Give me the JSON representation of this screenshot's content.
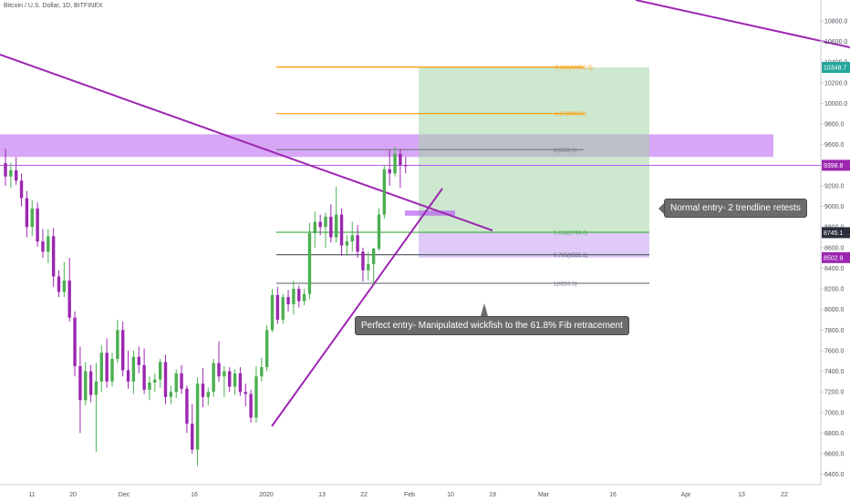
{
  "header": {
    "title": "Bitcoin / U.S. Dollar, 1D, BITFINEX"
  },
  "colors": {
    "bull": "#26a69a",
    "bull_fill": "#4caf50",
    "bear": "#9c27b0",
    "trendline": "#9c27b0",
    "zone": "#b65cf0",
    "profit": "#a5d6a7",
    "loss": "#d1b3f5",
    "fib_orange": "#ff9800",
    "fib_green": "#4caf50",
    "fib_gray": "#787b86",
    "fib_dark": "#5d606b"
  },
  "chart_data": {
    "type": "candlestick",
    "title": "Bitcoin / U.S. Dollar, 1D, BITFINEX",
    "ylim": [
      6300,
      10950
    ],
    "y_ticks": [
      6400,
      6600,
      6800,
      7000,
      7200,
      7400,
      7600,
      7800,
      8000,
      8200,
      8400,
      8600,
      8800,
      9000,
      9200,
      9400,
      9600,
      9800,
      10000,
      10200,
      10400,
      10600,
      10800
    ],
    "x_ticks": [
      "11",
      "20",
      "Dec",
      "16",
      "2020",
      "13",
      "22",
      "Feb",
      "10",
      "19",
      "Mar",
      "16",
      "Apr",
      "13",
      "22"
    ],
    "price_labels": [
      {
        "text": "10348.7",
        "value": 10348.7,
        "color": "#26a69a"
      },
      {
        "text": "9398.8",
        "value": 9398.8,
        "color": "#9c27b0"
      },
      {
        "text": "8745.1",
        "value": 8745.1,
        "color": "#2a2e39"
      },
      {
        "text": "8502.9",
        "value": 8502.9,
        "color": "#9c27b0"
      }
    ],
    "fib_levels": [
      {
        "label": "-0.618(10352.3)",
        "value": 10352.3,
        "color": "#ff9800"
      },
      {
        "label": "-0.27(9900.8)",
        "value": 9900.8,
        "color": "#ff9800"
      },
      {
        "label": "0(9550.6)",
        "value": 9550.6,
        "color": "#787b86"
      },
      {
        "label": "0.618(8749.0)",
        "value": 8749.0,
        "color": "#4caf50"
      },
      {
        "label": "0.786(8531.1)",
        "value": 8531.1,
        "color": "#5d606b"
      },
      {
        "label": "1(8253.5)",
        "value": 8253.5,
        "color": "#787b86"
      }
    ],
    "annotations": [
      "Normal entry- 2 trendline retests",
      "Perfect entry- Manipulated wickfish to the 61.8% Fib retracement"
    ],
    "candles": [
      {
        "o": 9420,
        "h": 9560,
        "l": 9200,
        "c": 9290
      },
      {
        "o": 9290,
        "h": 9420,
        "l": 9180,
        "c": 9350
      },
      {
        "o": 9350,
        "h": 9480,
        "l": 9210,
        "c": 9250
      },
      {
        "o": 9250,
        "h": 9320,
        "l": 9000,
        "c": 9080
      },
      {
        "o": 9080,
        "h": 9150,
        "l": 8700,
        "c": 8800
      },
      {
        "o": 8800,
        "h": 9060,
        "l": 8710,
        "c": 8980
      },
      {
        "o": 8980,
        "h": 9040,
        "l": 8610,
        "c": 8660
      },
      {
        "o": 8660,
        "h": 8780,
        "l": 8500,
        "c": 8560
      },
      {
        "o": 8560,
        "h": 8780,
        "l": 8450,
        "c": 8710
      },
      {
        "o": 8710,
        "h": 8790,
        "l": 8220,
        "c": 8320
      },
      {
        "o": 8320,
        "h": 8380,
        "l": 8120,
        "c": 8170
      },
      {
        "o": 8170,
        "h": 8460,
        "l": 8120,
        "c": 8280
      },
      {
        "o": 8280,
        "h": 8500,
        "l": 7880,
        "c": 7920
      },
      {
        "o": 7920,
        "h": 7980,
        "l": 7350,
        "c": 7450
      },
      {
        "o": 7450,
        "h": 7640,
        "l": 6800,
        "c": 7120
      },
      {
        "o": 7120,
        "h": 7490,
        "l": 7070,
        "c": 7400
      },
      {
        "o": 7400,
        "h": 7460,
        "l": 7100,
        "c": 7170
      },
      {
        "o": 7170,
        "h": 7480,
        "l": 6620,
        "c": 7300
      },
      {
        "o": 7300,
        "h": 7650,
        "l": 7200,
        "c": 7580
      },
      {
        "o": 7580,
        "h": 7720,
        "l": 7240,
        "c": 7300
      },
      {
        "o": 7300,
        "h": 7580,
        "l": 7250,
        "c": 7520
      },
      {
        "o": 7520,
        "h": 7900,
        "l": 7480,
        "c": 7800
      },
      {
        "o": 7800,
        "h": 7880,
        "l": 7350,
        "c": 7410
      },
      {
        "o": 7410,
        "h": 7600,
        "l": 7230,
        "c": 7300
      },
      {
        "o": 7300,
        "h": 7600,
        "l": 7180,
        "c": 7540
      },
      {
        "o": 7540,
        "h": 7640,
        "l": 7380,
        "c": 7460
      },
      {
        "o": 7460,
        "h": 7620,
        "l": 7180,
        "c": 7220
      },
      {
        "o": 7220,
        "h": 7350,
        "l": 7120,
        "c": 7290
      },
      {
        "o": 7290,
        "h": 7380,
        "l": 7200,
        "c": 7320
      },
      {
        "o": 7320,
        "h": 7520,
        "l": 7240,
        "c": 7490
      },
      {
        "o": 7490,
        "h": 7560,
        "l": 7080,
        "c": 7150
      },
      {
        "o": 7150,
        "h": 7260,
        "l": 7080,
        "c": 7200
      },
      {
        "o": 7200,
        "h": 7420,
        "l": 7140,
        "c": 7380
      },
      {
        "o": 7380,
        "h": 7460,
        "l": 7180,
        "c": 7230
      },
      {
        "o": 7230,
        "h": 7260,
        "l": 6800,
        "c": 6890
      },
      {
        "o": 6890,
        "h": 7080,
        "l": 6600,
        "c": 6640
      },
      {
        "o": 6640,
        "h": 7340,
        "l": 6480,
        "c": 7280
      },
      {
        "o": 7280,
        "h": 7430,
        "l": 7050,
        "c": 7150
      },
      {
        "o": 7150,
        "h": 7240,
        "l": 7070,
        "c": 7200
      },
      {
        "o": 7200,
        "h": 7520,
        "l": 7150,
        "c": 7480
      },
      {
        "o": 7480,
        "h": 7690,
        "l": 7300,
        "c": 7350
      },
      {
        "o": 7350,
        "h": 7450,
        "l": 7150,
        "c": 7400
      },
      {
        "o": 7400,
        "h": 7440,
        "l": 7200,
        "c": 7250
      },
      {
        "o": 7250,
        "h": 7420,
        "l": 7170,
        "c": 7380
      },
      {
        "o": 7380,
        "h": 7440,
        "l": 7160,
        "c": 7200
      },
      {
        "o": 7200,
        "h": 7280,
        "l": 7060,
        "c": 7180
      },
      {
        "o": 7180,
        "h": 7220,
        "l": 6900,
        "c": 6950
      },
      {
        "o": 6950,
        "h": 7450,
        "l": 6900,
        "c": 7350
      },
      {
        "o": 7350,
        "h": 7530,
        "l": 7300,
        "c": 7440
      },
      {
        "o": 7440,
        "h": 7850,
        "l": 7400,
        "c": 7800
      },
      {
        "o": 7800,
        "h": 8200,
        "l": 7780,
        "c": 8140
      },
      {
        "o": 8140,
        "h": 8220,
        "l": 7860,
        "c": 7900
      },
      {
        "o": 7900,
        "h": 8150,
        "l": 7860,
        "c": 8120
      },
      {
        "o": 8120,
        "h": 8190,
        "l": 7980,
        "c": 8050
      },
      {
        "o": 8050,
        "h": 8280,
        "l": 7950,
        "c": 8200
      },
      {
        "o": 8200,
        "h": 8230,
        "l": 8020,
        "c": 8080
      },
      {
        "o": 8080,
        "h": 8200,
        "l": 8040,
        "c": 8150
      },
      {
        "o": 8150,
        "h": 8840,
        "l": 8100,
        "c": 8740
      },
      {
        "o": 8740,
        "h": 8950,
        "l": 8600,
        "c": 8850
      },
      {
        "o": 8850,
        "h": 8920,
        "l": 8720,
        "c": 8800
      },
      {
        "o": 8800,
        "h": 8940,
        "l": 8600,
        "c": 8900
      },
      {
        "o": 8900,
        "h": 9020,
        "l": 8650,
        "c": 8700
      },
      {
        "o": 8700,
        "h": 9190,
        "l": 8650,
        "c": 8920
      },
      {
        "o": 8920,
        "h": 8980,
        "l": 8520,
        "c": 8620
      },
      {
        "o": 8620,
        "h": 8720,
        "l": 8520,
        "c": 8660
      },
      {
        "o": 8660,
        "h": 8850,
        "l": 8560,
        "c": 8720
      },
      {
        "o": 8720,
        "h": 8820,
        "l": 8500,
        "c": 8560
      },
      {
        "o": 8560,
        "h": 8600,
        "l": 8270,
        "c": 8380
      },
      {
        "o": 8380,
        "h": 8560,
        "l": 8280,
        "c": 8440
      },
      {
        "o": 8440,
        "h": 8600,
        "l": 8240,
        "c": 8590
      },
      {
        "o": 8590,
        "h": 8980,
        "l": 8570,
        "c": 8920
      },
      {
        "o": 8920,
        "h": 9400,
        "l": 8880,
        "c": 9360
      },
      {
        "o": 9360,
        "h": 9550,
        "l": 9200,
        "c": 9320
      },
      {
        "o": 9320,
        "h": 9580,
        "l": 9290,
        "c": 9510
      },
      {
        "o": 9510,
        "h": 9560,
        "l": 9180,
        "c": 9400
      },
      {
        "o": 9400,
        "h": 9480,
        "l": 9320,
        "c": 9390
      }
    ]
  }
}
